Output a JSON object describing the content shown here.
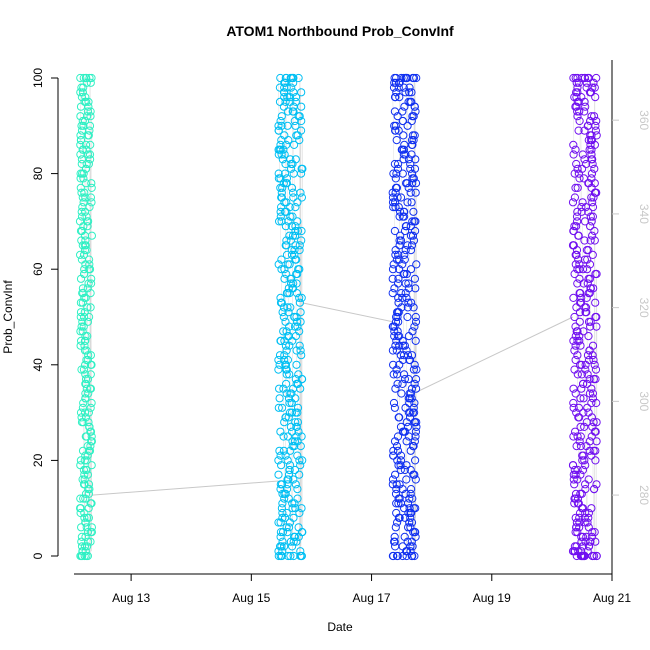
{
  "chart_data": {
    "type": "scatter",
    "title": "ATOM1 Northbound Prob_ConvInf",
    "xlabel": "Date",
    "ylabel": "Prob_ConvInf",
    "x_tick_labels": [
      "Aug 13",
      "Aug 15",
      "Aug 17",
      "Aug 19",
      "Aug 21"
    ],
    "x_tick_values": [
      13,
      15,
      17,
      19,
      21
    ],
    "xlim": [
      12.05,
      21.0
    ],
    "ylim": [
      0,
      100
    ],
    "y_ticks": [
      0,
      20,
      40,
      60,
      80,
      100
    ],
    "right_axis": {
      "ylim": [
        267,
        369
      ],
      "ticks": [
        280,
        300,
        320,
        340,
        360
      ]
    },
    "grid": false,
    "legend": "none",
    "point_style": "open-circle",
    "trend_line_color": "#c8c8c8",
    "right_axis_color": "#c8c8c8",
    "series": [
      {
        "x_range": [
          12.15,
          12.35
        ],
        "right_start": 280,
        "right_end": 280,
        "color": "#2ff0c4"
      },
      {
        "x_range": [
          15.45,
          15.85
        ],
        "right_start": 283,
        "right_end": 321,
        "color": "#00bff3"
      },
      {
        "x_range": [
          17.35,
          17.75
        ],
        "right_start": 317,
        "right_end": 302,
        "color": "#1030f0"
      },
      {
        "x_range": [
          20.35,
          20.75
        ],
        "right_start": 318,
        "right_end": 318,
        "color": "#7010f0"
      }
    ],
    "point_y_values": [
      [
        100,
        99,
        98,
        97,
        96,
        95,
        94,
        93,
        92,
        91,
        90,
        89,
        88,
        87,
        86,
        85,
        84,
        83,
        82,
        81,
        80,
        79,
        78,
        77,
        76,
        75,
        74,
        73,
        72,
        71,
        70,
        69,
        68,
        67,
        66,
        65,
        64,
        63,
        62,
        61,
        60,
        59,
        58,
        57,
        56,
        55,
        54,
        53,
        52,
        51,
        50,
        49,
        48,
        47,
        46,
        45,
        44,
        43,
        42,
        41,
        40,
        39,
        38,
        37,
        36,
        35,
        34,
        33,
        32,
        31,
        30,
        29,
        28,
        27,
        26,
        25,
        24,
        23,
        22,
        21,
        20,
        19,
        18,
        17,
        16,
        15,
        14,
        13,
        12,
        11,
        10,
        9,
        8,
        7,
        6,
        5,
        4,
        3,
        2,
        1,
        0,
        100,
        99,
        98,
        97,
        96,
        95,
        94,
        93,
        92,
        91,
        90,
        89,
        88,
        87,
        86,
        85,
        84,
        83,
        82,
        81,
        80,
        79,
        78,
        77,
        76,
        75,
        74,
        73,
        72,
        71,
        70,
        69,
        68,
        67,
        66,
        65,
        64,
        63,
        62,
        61,
        60,
        59,
        58,
        57,
        56,
        55,
        54,
        53,
        52,
        51,
        50,
        49,
        48,
        47,
        46,
        45,
        44,
        43,
        42,
        41,
        40,
        39,
        38,
        37,
        36,
        35,
        34,
        33,
        32,
        31,
        30,
        29,
        28,
        27,
        26,
        25,
        24,
        23,
        22,
        21,
        20,
        19,
        18,
        17,
        16,
        15,
        14,
        13,
        12,
        11,
        10,
        9,
        8,
        7,
        6,
        5,
        4,
        3,
        2,
        1,
        0,
        100,
        100,
        100,
        100,
        0,
        0,
        0,
        0,
        85,
        82,
        80,
        75,
        70,
        65,
        60,
        55,
        50,
        45,
        40,
        35,
        30,
        28,
        25,
        22,
        20,
        18,
        15,
        12,
        10,
        8,
        7,
        6,
        5,
        3,
        2,
        1,
        95,
        92,
        90,
        88,
        86,
        84
      ],
      [
        100,
        99,
        98,
        97,
        96,
        95,
        94,
        93,
        92,
        91,
        90,
        89,
        88,
        87,
        86,
        85,
        84,
        83,
        82,
        81,
        80,
        79,
        78,
        77,
        76,
        75,
        74,
        73,
        72,
        71,
        70,
        69,
        68,
        67,
        66,
        65,
        64,
        63,
        62,
        61,
        60,
        59,
        58,
        57,
        56,
        55,
        54,
        53,
        52,
        51,
        50,
        49,
        48,
        47,
        46,
        45,
        44,
        43,
        42,
        41,
        40,
        39,
        38,
        37,
        36,
        35,
        34,
        33,
        32,
        31,
        30,
        29,
        28,
        27,
        26,
        25,
        24,
        23,
        22,
        21,
        20,
        19,
        18,
        17,
        16,
        15,
        14,
        13,
        12,
        11,
        10,
        9,
        8,
        7,
        6,
        5,
        4,
        3,
        2,
        1,
        0,
        100,
        99,
        98,
        97,
        96,
        95,
        94,
        93,
        92,
        91,
        90,
        89,
        88,
        87,
        86,
        85,
        84,
        83,
        82,
        81,
        80,
        79,
        78,
        77,
        76,
        75,
        74,
        73,
        72,
        71,
        70,
        69,
        68,
        67,
        66,
        65,
        64,
        63,
        62,
        61,
        60,
        59,
        58,
        57,
        56,
        55,
        54,
        53,
        52,
        51,
        50,
        49,
        48,
        47,
        46,
        45,
        44,
        43,
        42,
        41,
        40,
        39,
        38,
        37,
        36,
        35,
        34,
        33,
        32,
        31,
        30,
        29,
        28,
        27,
        26,
        25,
        24,
        23,
        22,
        21,
        20,
        19,
        18,
        17,
        16,
        15,
        14,
        13,
        12,
        11,
        10,
        9,
        8,
        7,
        6,
        5,
        4,
        3,
        2,
        1,
        0,
        100,
        99,
        98,
        97,
        96,
        95,
        94,
        93,
        92,
        91,
        90,
        89,
        88,
        87,
        86,
        85,
        84,
        83,
        82,
        81,
        80,
        79,
        78,
        77,
        76,
        75,
        74,
        73,
        72,
        71,
        70,
        69,
        68,
        67,
        66,
        65,
        64,
        63,
        62,
        61,
        60,
        59,
        58,
        57,
        56,
        55,
        54,
        53,
        52,
        51,
        50,
        49,
        48,
        47,
        46,
        45,
        44,
        43,
        42,
        41,
        40,
        39,
        38,
        37,
        36,
        35,
        34,
        33,
        32,
        31,
        30,
        29,
        28,
        27,
        26,
        25,
        24,
        23,
        22,
        21,
        20,
        19,
        18,
        17,
        16,
        15,
        14,
        13,
        12,
        11,
        10,
        9,
        8,
        7,
        6,
        5,
        4,
        3,
        2,
        1,
        0,
        100,
        100,
        100,
        100,
        100,
        100,
        0,
        0,
        0,
        0,
        0,
        0,
        98,
        97,
        96,
        95,
        2,
        3,
        4,
        5,
        70,
        65,
        60,
        55,
        50,
        45,
        40,
        35,
        30,
        25,
        20,
        15,
        10,
        5,
        90,
        85,
        80,
        75
      ],
      [
        100,
        99,
        98,
        97,
        96,
        95,
        94,
        93,
        92,
        91,
        90,
        89,
        88,
        87,
        86,
        85,
        84,
        83,
        82,
        81,
        80,
        79,
        78,
        77,
        76,
        75,
        74,
        73,
        72,
        71,
        70,
        69,
        68,
        67,
        66,
        65,
        64,
        63,
        62,
        61,
        60,
        59,
        58,
        57,
        56,
        55,
        54,
        53,
        52,
        51,
        50,
        49,
        48,
        47,
        46,
        45,
        44,
        43,
        42,
        41,
        40,
        39,
        38,
        37,
        36,
        35,
        34,
        33,
        32,
        31,
        30,
        29,
        28,
        27,
        26,
        25,
        24,
        23,
        22,
        21,
        20,
        19,
        18,
        17,
        16,
        15,
        14,
        13,
        12,
        11,
        10,
        9,
        8,
        7,
        6,
        5,
        4,
        3,
        2,
        1,
        0,
        100,
        99,
        98,
        97,
        96,
        95,
        94,
        93,
        92,
        91,
        90,
        89,
        88,
        87,
        86,
        85,
        84,
        83,
        82,
        81,
        80,
        79,
        78,
        77,
        76,
        75,
        74,
        73,
        72,
        71,
        70,
        69,
        68,
        67,
        66,
        65,
        64,
        63,
        62,
        61,
        60,
        59,
        58,
        57,
        56,
        55,
        54,
        53,
        52,
        51,
        50,
        49,
        48,
        47,
        46,
        45,
        44,
        43,
        42,
        41,
        40,
        39,
        38,
        37,
        36,
        35,
        34,
        33,
        32,
        31,
        30,
        29,
        28,
        27,
        26,
        25,
        24,
        23,
        22,
        21,
        20,
        19,
        18,
        17,
        16,
        15,
        14,
        13,
        12,
        11,
        10,
        9,
        8,
        7,
        6,
        5,
        4,
        3,
        2,
        1,
        0,
        100,
        99,
        98,
        97,
        96,
        95,
        94,
        93,
        92,
        91,
        90,
        89,
        88,
        87,
        86,
        85,
        84,
        83,
        82,
        81,
        80,
        79,
        78,
        77,
        76,
        75,
        74,
        73,
        72,
        71,
        70,
        69,
        68,
        67,
        66,
        65,
        64,
        63,
        62,
        61,
        60,
        59,
        58,
        57,
        56,
        55,
        54,
        53,
        52,
        51,
        50,
        49,
        48,
        47,
        46,
        45,
        44,
        43,
        42,
        41,
        40,
        39,
        38,
        37,
        36,
        35,
        34,
        33,
        32,
        31,
        30,
        29,
        28,
        27,
        26,
        25,
        24,
        23,
        22,
        21,
        20,
        19,
        18,
        17,
        16,
        15,
        14,
        13,
        12,
        11,
        10,
        9,
        8,
        7,
        6,
        5,
        4,
        3,
        2,
        1,
        0,
        100,
        100,
        100,
        100,
        100,
        100,
        100,
        100,
        0,
        0,
        0,
        0,
        0,
        0,
        99,
        98,
        97,
        1,
        2,
        3,
        12,
        11,
        10,
        9,
        8,
        50,
        48,
        46,
        44,
        42,
        80,
        78,
        76,
        74,
        72,
        30,
        28,
        26
      ],
      [
        100,
        99,
        98,
        97,
        96,
        95,
        94,
        93,
        92,
        91,
        90,
        89,
        88,
        87,
        86,
        85,
        84,
        83,
        82,
        81,
        80,
        79,
        78,
        77,
        76,
        75,
        74,
        73,
        72,
        71,
        70,
        69,
        68,
        67,
        66,
        65,
        64,
        63,
        62,
        61,
        60,
        59,
        58,
        57,
        56,
        55,
        54,
        53,
        52,
        51,
        50,
        49,
        48,
        47,
        46,
        45,
        44,
        43,
        42,
        41,
        40,
        39,
        38,
        37,
        36,
        35,
        34,
        33,
        32,
        31,
        30,
        29,
        28,
        27,
        26,
        25,
        24,
        23,
        22,
        21,
        20,
        19,
        18,
        17,
        16,
        15,
        14,
        13,
        12,
        11,
        10,
        9,
        8,
        7,
        6,
        5,
        4,
        3,
        2,
        1,
        0,
        100,
        99,
        98,
        97,
        96,
        95,
        94,
        93,
        92,
        91,
        90,
        89,
        88,
        87,
        86,
        85,
        84,
        83,
        82,
        81,
        80,
        79,
        78,
        77,
        76,
        75,
        74,
        73,
        72,
        71,
        70,
        69,
        68,
        67,
        66,
        65,
        64,
        63,
        62,
        61,
        60,
        59,
        58,
        57,
        56,
        55,
        54,
        53,
        52,
        51,
        50,
        49,
        48,
        47,
        46,
        45,
        44,
        43,
        42,
        41,
        40,
        39,
        38,
        37,
        36,
        35,
        34,
        33,
        32,
        31,
        30,
        29,
        28,
        27,
        26,
        25,
        24,
        23,
        22,
        21,
        20,
        19,
        18,
        17,
        16,
        15,
        14,
        13,
        12,
        11,
        10,
        9,
        8,
        7,
        6,
        5,
        4,
        3,
        2,
        1,
        0,
        100,
        99,
        98,
        97,
        96,
        95,
        94,
        93,
        92,
        91,
        90,
        89,
        88,
        87,
        86,
        85,
        84,
        83,
        82,
        81,
        80,
        79,
        78,
        77,
        76,
        75,
        74,
        73,
        72,
        71,
        70,
        69,
        68,
        67,
        66,
        65,
        64,
        63,
        62,
        61,
        60,
        59,
        58,
        57,
        56,
        55,
        54,
        53,
        52,
        51,
        50,
        49,
        48,
        47,
        46,
        45,
        44,
        43,
        42,
        41,
        40,
        39,
        38,
        37,
        36,
        35,
        34,
        33,
        32,
        31,
        30,
        29,
        28,
        27,
        26,
        25,
        24,
        23,
        22,
        21,
        20,
        19,
        18,
        17,
        16,
        15,
        14,
        13,
        12,
        11,
        10,
        9,
        8,
        7,
        6,
        5,
        4,
        3,
        2,
        1,
        0,
        100,
        100,
        100,
        100,
        100,
        100,
        99,
        98,
        97,
        96,
        0,
        0,
        0,
        0,
        0,
        0,
        0,
        0,
        0,
        0,
        0,
        0,
        1,
        1,
        1,
        2,
        2,
        3,
        3,
        4,
        5,
        6,
        7,
        8,
        60,
        40,
        55,
        25
      ]
    ]
  }
}
